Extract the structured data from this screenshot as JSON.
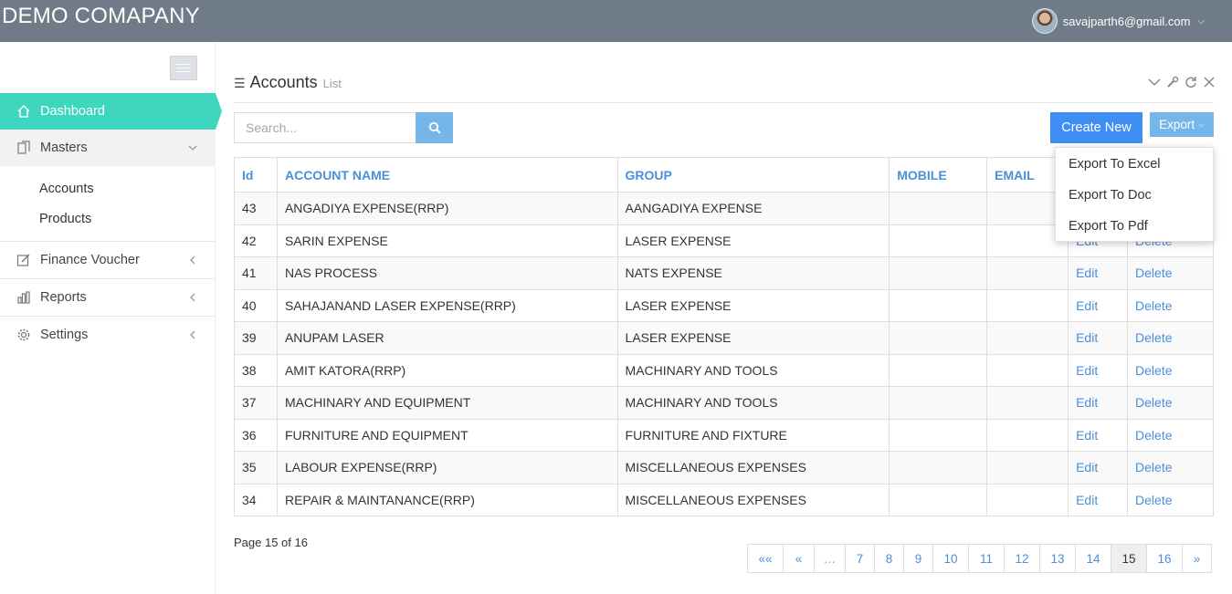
{
  "header": {
    "brand": "DEMO COMAPANY",
    "user_email": "savajparth6@gmail.com"
  },
  "sidebar": {
    "dashboard": "Dashboard",
    "masters": "Masters",
    "masters_items": [
      "Accounts",
      "Products"
    ],
    "finance_voucher": "Finance Voucher",
    "reports": "Reports",
    "settings": "Settings"
  },
  "page": {
    "title": "Accounts",
    "subtitle": "List"
  },
  "search": {
    "placeholder": "Search..."
  },
  "buttons": {
    "create_new": "Create New",
    "export": "Export"
  },
  "export_menu": [
    "Export To Excel",
    "Export To Doc",
    "Export To Pdf"
  ],
  "table": {
    "headers": [
      "Id",
      "ACCOUNT NAME",
      "GROUP",
      "MOBILE",
      "EMAIL"
    ],
    "edit_label": "Edit",
    "delete_label": "Delete",
    "rows": [
      {
        "id": "43",
        "name": "ANGADIYA EXPENSE(RRP)",
        "group": "AANGADIYA EXPENSE",
        "mobile": "",
        "email": ""
      },
      {
        "id": "42",
        "name": "SARIN EXPENSE",
        "group": "LASER EXPENSE",
        "mobile": "",
        "email": ""
      },
      {
        "id": "41",
        "name": "NAS PROCESS",
        "group": "NATS EXPENSE",
        "mobile": "",
        "email": ""
      },
      {
        "id": "40",
        "name": "SAHAJANAND LASER EXPENSE(RRP)",
        "group": "LASER EXPENSE",
        "mobile": "",
        "email": ""
      },
      {
        "id": "39",
        "name": "ANUPAM LASER",
        "group": "LASER EXPENSE",
        "mobile": "",
        "email": ""
      },
      {
        "id": "38",
        "name": "AMIT KATORA(RRP)",
        "group": "MACHINARY AND TOOLS",
        "mobile": "",
        "email": ""
      },
      {
        "id": "37",
        "name": "MACHINARY AND EQUIPMENT",
        "group": "MACHINARY AND TOOLS",
        "mobile": "",
        "email": ""
      },
      {
        "id": "36",
        "name": "FURNITURE AND EQUIPMENT",
        "group": "FURNITURE AND FIXTURE",
        "mobile": "",
        "email": ""
      },
      {
        "id": "35",
        "name": "LABOUR EXPENSE(RRP)",
        "group": "MISCELLANEOUS EXPENSES",
        "mobile": "",
        "email": ""
      },
      {
        "id": "34",
        "name": "REPAIR & MAINTANANCE(RRP)",
        "group": "MISCELLANEOUS EXPENSES",
        "mobile": "",
        "email": ""
      }
    ]
  },
  "pagination": {
    "info": "Page 15 of 16",
    "first": "««",
    "prev": "«",
    "ellipsis": "…",
    "next": "»",
    "pages": [
      "7",
      "8",
      "9",
      "10",
      "11",
      "12",
      "13",
      "14",
      "15",
      "16"
    ],
    "current": "15"
  },
  "colors": {
    "topbar": "#6f7b87",
    "accent_teal": "#3fd6c0",
    "primary": "#3f8ef4",
    "link": "#4a8fd8"
  }
}
